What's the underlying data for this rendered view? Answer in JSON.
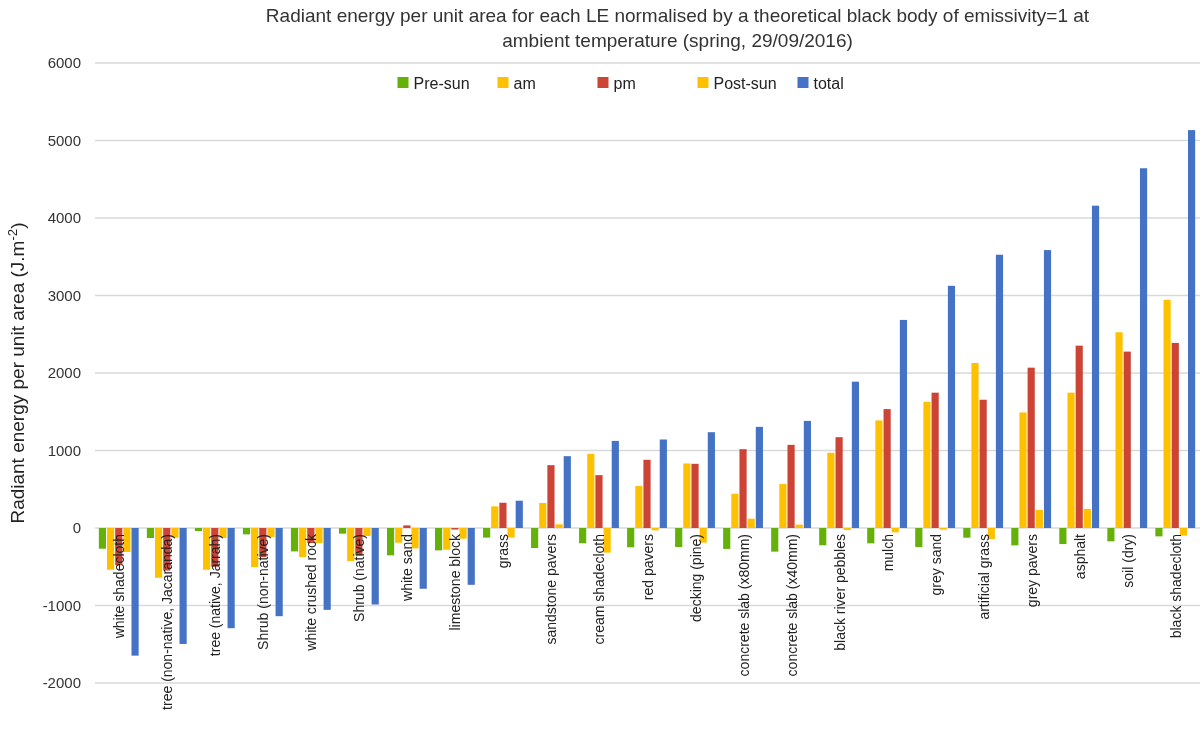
{
  "chart_data": {
    "type": "bar",
    "title": "Radiant energy per unit area for each LE normalised by a theoretical black body of emissivity=1 at ambient temperature (spring, 29/09/2016)",
    "ylabel": "Radiant energy per unit area (J.m$^{-2}$)",
    "categories": [
      "white shadecloth",
      "tree (non-native, Jacaranda)",
      "tree (native, Jarrah)",
      "Shrub (non-native)",
      "white crushed rock",
      "Shrub (native)",
      "white sand",
      "limestone block",
      "grass",
      "sandstone pavers",
      "cream shadecloth",
      "red pavers",
      "decking (pine)",
      "concrete slab (x80mm)",
      "concrete slab (x40mm)",
      "black river pebbles",
      "mulch",
      "grey sand",
      "artificial grass",
      "grey pavers",
      "asphalt",
      "soil (dry)",
      "black shadecloth"
    ],
    "series": [
      {
        "name": "Pre-sun",
        "color": "#66b00a",
        "values": [
          -267,
          -129,
          -39,
          -82,
          -302,
          -73,
          -353,
          -289,
          -124,
          -258,
          -197,
          -249,
          -245,
          -270,
          -305,
          -223,
          -198,
          -246,
          -125,
          -224,
          -207,
          -172,
          -108
        ]
      },
      {
        "name": "am",
        "color": "#ffc000",
        "values": [
          -539,
          -642,
          -539,
          -504,
          -375,
          -427,
          -190,
          -280,
          279,
          322,
          957,
          541,
          833,
          442,
          567,
          970,
          1388,
          1629,
          2129,
          1491,
          1746,
          2526,
          2944
        ]
      },
      {
        "name": "pm",
        "color": "#cc4435",
        "values": [
          -480,
          -550,
          -500,
          -375,
          -194,
          -353,
          34,
          -20,
          326,
          811,
          682,
          880,
          828,
          1017,
          1073,
          1172,
          1534,
          1746,
          1655,
          2069,
          2353,
          2276,
          2388
        ]
      },
      {
        "name": "Post-sun",
        "color": "#ffc000",
        "values": [
          -310,
          -125,
          -129,
          -116,
          -194,
          -103,
          -263,
          -138,
          -124,
          47,
          -318,
          -30,
          -189,
          120,
          43,
          -26,
          -56,
          -22,
          -142,
          233,
          246,
          null,
          -99
        ]
      },
      {
        "name": "total",
        "color": "#4472c4",
        "values": [
          -1647,
          -1496,
          -1293,
          -1138,
          -1056,
          -987,
          -784,
          -733,
          352,
          927,
          1124,
          1142,
          1236,
          1305,
          1382,
          1888,
          2685,
          3125,
          3526,
          3586,
          4159,
          4642,
          5134
        ]
      }
    ],
    "ylim": [
      -2000,
      6000
    ],
    "yticks": [
      -2000,
      -1000,
      0,
      1000,
      2000,
      3000,
      4000,
      5000,
      6000
    ],
    "grid": "y",
    "legend": "top"
  }
}
